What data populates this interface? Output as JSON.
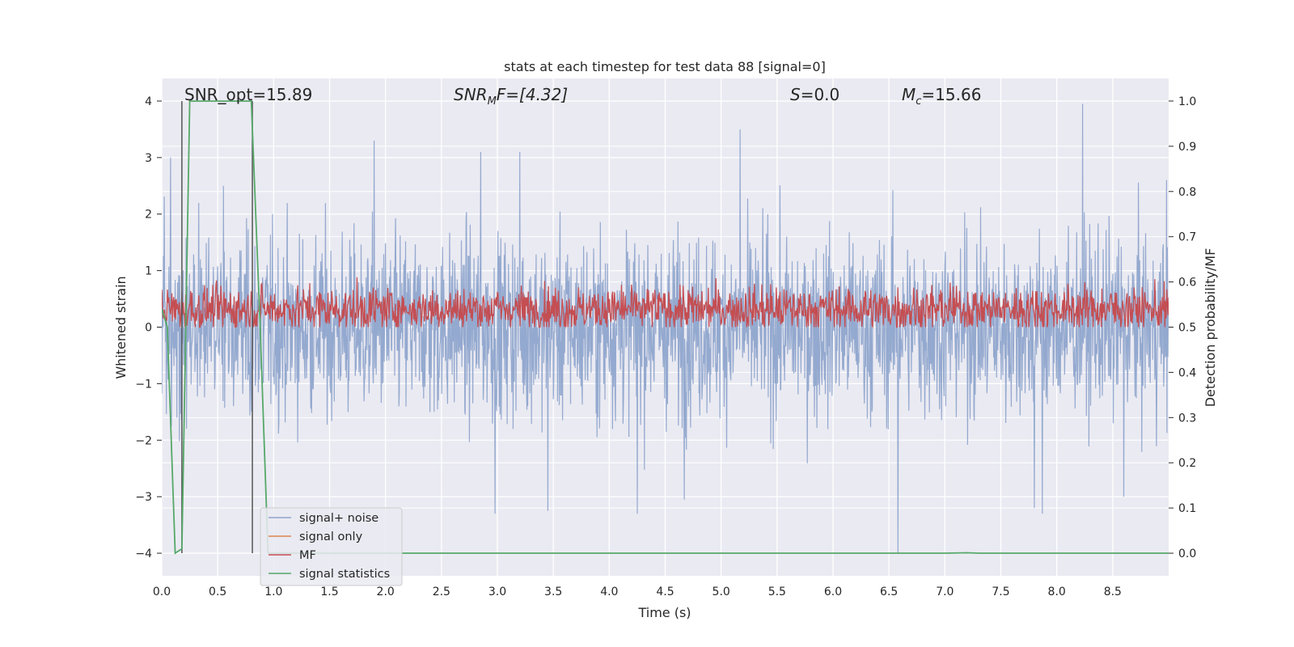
{
  "chart_data": {
    "type": "line",
    "title": "stats at each timestep for test data 88 [signal=0]",
    "xlabel": "Time (s)",
    "ylabel_left": "Whitened strain",
    "ylabel_right": "Detection probability/MF",
    "xlim": [
      0.0,
      9.0
    ],
    "ylim_left": [
      -4.4,
      4.4
    ],
    "ylim_right": [
      -0.05,
      1.05
    ],
    "x_ticks": [
      0.0,
      0.5,
      1.0,
      1.5,
      2.0,
      2.5,
      3.0,
      3.5,
      4.0,
      4.5,
      5.0,
      5.5,
      6.0,
      6.5,
      7.0,
      7.5,
      8.0,
      8.5
    ],
    "x_tick_labels": [
      "0.0",
      "0.5",
      "1.0",
      "1.5",
      "2.0",
      "2.5",
      "3.0",
      "3.5",
      "4.0",
      "4.5",
      "5.0",
      "5.5",
      "6.0",
      "6.5",
      "7.0",
      "7.5",
      "8.0",
      "8.5"
    ],
    "y_left_ticks": [
      -4,
      -3,
      -2,
      -1,
      0,
      1,
      2,
      3,
      4
    ],
    "y_left_tick_labels": [
      "−4",
      "−3",
      "−2",
      "−1",
      "0",
      "1",
      "2",
      "3",
      "4"
    ],
    "y_right_ticks": [
      0.0,
      0.1,
      0.2,
      0.3,
      0.4,
      0.5,
      0.6,
      0.7,
      0.8,
      0.9,
      1.0
    ],
    "y_right_tick_labels": [
      "0.0",
      "0.1",
      "0.2",
      "0.3",
      "0.4",
      "0.5",
      "0.6",
      "0.7",
      "0.8",
      "0.9",
      "1.0"
    ],
    "grid": true,
    "annotations": {
      "snr_opt": "SNR_opt=15.89",
      "snr_mf_base": "SNR",
      "snr_mf_sub": "M",
      "snr_mf_rest": "F=[4.32]",
      "s_var": "S",
      "s_rest": "=0.0",
      "mc_var": "M",
      "mc_sub": "c",
      "mc_rest": "=15.66"
    },
    "vertical_markers": [
      0.18,
      0.81
    ],
    "legend": {
      "position": "lower-left",
      "entries": [
        "signal+ noise",
        "signal only",
        "MF",
        "signal statistics"
      ]
    },
    "series": [
      {
        "name": "signal+ noise",
        "axis": "left",
        "color": "#8fa5cc",
        "description": "whitened noise, roughly uniform amplitude ±1.5 with spikes to ±3.5",
        "amplitude": 1.5,
        "peaks": [
          {
            "x": 0.08,
            "y": 3.0
          },
          {
            "x": 0.55,
            "y": 2.5
          },
          {
            "x": 1.9,
            "y": 3.3
          },
          {
            "x": 2.85,
            "y": 3.1
          },
          {
            "x": 3.2,
            "y": 3.1
          },
          {
            "x": 5.17,
            "y": 3.5
          },
          {
            "x": 8.23,
            "y": 3.95
          },
          {
            "x": 8.98,
            "y": 2.6
          },
          {
            "x": 2.98,
            "y": -3.3
          },
          {
            "x": 3.45,
            "y": -3.25
          },
          {
            "x": 4.25,
            "y": -3.3
          },
          {
            "x": 4.67,
            "y": -3.05
          },
          {
            "x": 6.58,
            "y": -4.0
          },
          {
            "x": 7.8,
            "y": -3.2
          },
          {
            "x": 7.87,
            "y": -3.3
          },
          {
            "x": 8.6,
            "y": -3.0
          }
        ]
      },
      {
        "name": "signal only",
        "axis": "left",
        "color": "#dd8452",
        "values": []
      },
      {
        "name": "MF",
        "axis": "right",
        "color": "#c44e52",
        "description": "matched-filter output oscillating around 0.54",
        "mean": 0.54,
        "spread": 0.035,
        "max": 0.62,
        "min": 0.5
      },
      {
        "name": "signal statistics",
        "axis": "right",
        "color": "#55a868",
        "x": [
          0.0,
          0.05,
          0.12,
          0.18,
          0.25,
          0.3,
          0.6,
          0.8,
          0.88,
          0.95,
          1.0,
          2.0,
          3.0,
          4.0,
          5.0,
          6.0,
          7.0,
          7.2,
          7.3,
          8.0,
          9.0
        ],
        "y": [
          0.54,
          0.5,
          0.0,
          0.01,
          1.0,
          1.0,
          1.0,
          1.0,
          0.5,
          0.0,
          0.0,
          0.0,
          0.0,
          0.0,
          0.0,
          0.0,
          0.0,
          0.001,
          0.0,
          0.0,
          0.0
        ]
      }
    ]
  }
}
